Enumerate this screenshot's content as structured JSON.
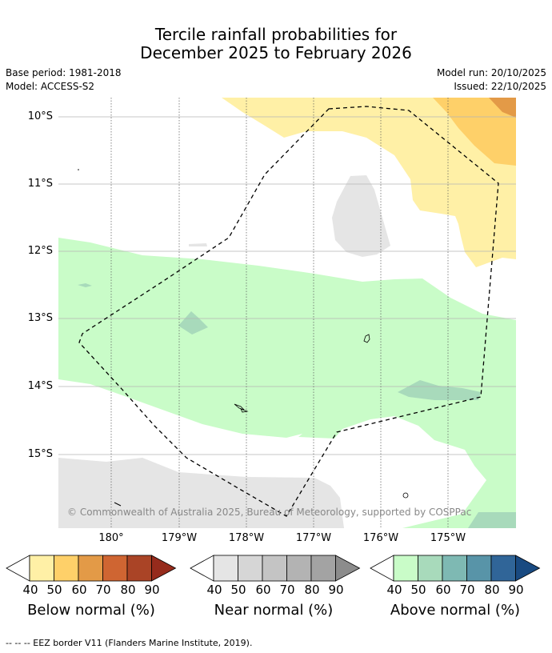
{
  "title": {
    "line1": "Tercile rainfall probabilities for",
    "line2": "December 2025 to February 2026"
  },
  "meta": {
    "base_period": "Base period: 1981-2018",
    "model": "Model: ACCESS-S2",
    "model_run": "Model run: 20/10/2025",
    "issued": "Issued: 22/10/2025"
  },
  "map": {
    "lat_labels": [
      "10°S",
      "11°S",
      "12°S",
      "13°S",
      "14°S",
      "15°S"
    ],
    "lon_labels": [
      "180°",
      "179°W",
      "178°W",
      "177°W",
      "176°W",
      "175°W"
    ],
    "copyright": "© Commonwealth of Australia 2025, Bureau of Meteorology, supported by COSPPac"
  },
  "colorbars": {
    "ticks": [
      "40",
      "50",
      "60",
      "70",
      "80",
      "90"
    ],
    "below_title": "Below normal (%)",
    "near_title": "Near normal (%)",
    "above_title": "Above normal (%)",
    "below_colors": [
      "#fff0a6",
      "#fed069",
      "#e39a47",
      "#cf6532",
      "#aa4426",
      "#962b1c"
    ],
    "near_colors": [
      "#e5e5e5",
      "#d6d6d6",
      "#c4c4c4",
      "#b3b3b3",
      "#a3a3a3",
      "#8c8c8c"
    ],
    "above_colors": [
      "#c9fcc8",
      "#a8dabb",
      "#7eb9b3",
      "#5894a8",
      "#306598",
      "#194a81"
    ]
  },
  "footer": "--  --  -- EEZ border V11 (Flanders Marine Institute, 2019)."
}
